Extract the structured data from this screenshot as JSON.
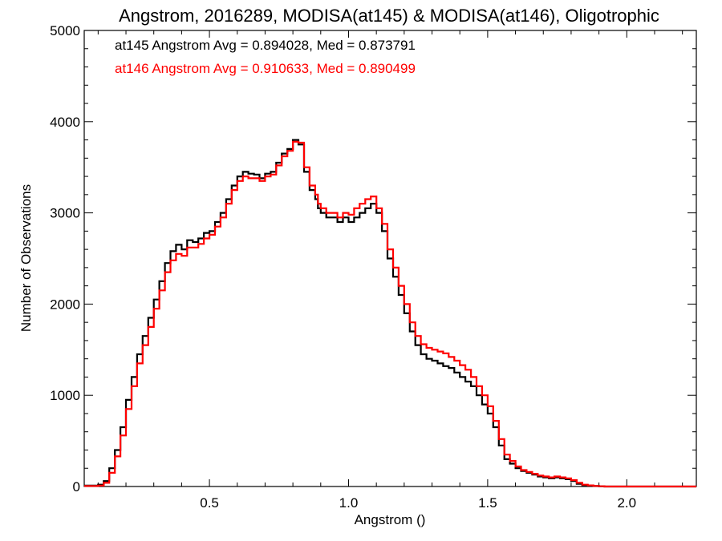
{
  "chart_data": {
    "type": "line",
    "step": true,
    "title": "Angstrom, 2016289, MODISA(at145) & MODISA(at146), Oligotrophic",
    "xlabel": "Angstrom ()",
    "ylabel": "Number of Observations",
    "xlim": [
      0.05,
      2.25
    ],
    "ylim": [
      0,
      5000
    ],
    "xticks": [
      0.5,
      1.0,
      1.5,
      2.0
    ],
    "xtick_labels": [
      "0.5",
      "1.0",
      "1.5",
      "2.0"
    ],
    "yticks": [
      0,
      1000,
      2000,
      3000,
      4000,
      5000
    ],
    "ytick_labels": [
      "0",
      "1000",
      "2000",
      "3000",
      "4000",
      "5000"
    ],
    "grid": false,
    "legend_placement": "top-left",
    "series": [
      {
        "color": "#000000",
        "legend": "at145 Angstrom Avg = 0.894028, Med = 0.873791",
        "x": [
          0.05,
          0.1,
          0.12,
          0.14,
          0.16,
          0.18,
          0.2,
          0.22,
          0.24,
          0.26,
          0.28,
          0.3,
          0.32,
          0.34,
          0.36,
          0.38,
          0.4,
          0.42,
          0.44,
          0.46,
          0.48,
          0.5,
          0.52,
          0.54,
          0.56,
          0.58,
          0.6,
          0.62,
          0.64,
          0.66,
          0.68,
          0.7,
          0.72,
          0.74,
          0.76,
          0.78,
          0.8,
          0.82,
          0.84,
          0.86,
          0.88,
          0.89,
          0.9,
          0.92,
          0.94,
          0.96,
          0.98,
          1.0,
          1.02,
          1.04,
          1.06,
          1.08,
          1.1,
          1.12,
          1.14,
          1.16,
          1.18,
          1.2,
          1.22,
          1.24,
          1.26,
          1.28,
          1.3,
          1.32,
          1.34,
          1.36,
          1.38,
          1.4,
          1.42,
          1.44,
          1.46,
          1.48,
          1.5,
          1.52,
          1.54,
          1.56,
          1.58,
          1.6,
          1.62,
          1.64,
          1.66,
          1.68,
          1.7,
          1.72,
          1.74,
          1.76,
          1.78,
          1.8,
          1.82,
          1.84,
          1.86,
          1.88,
          1.9,
          1.92,
          1.94,
          1.96,
          1.98,
          2.0,
          2.02,
          2.04,
          2.06,
          2.1,
          2.15,
          2.25
        ],
        "y": [
          10,
          20,
          60,
          200,
          400,
          650,
          950,
          1200,
          1450,
          1650,
          1850,
          2050,
          2250,
          2450,
          2580,
          2650,
          2600,
          2700,
          2680,
          2720,
          2780,
          2800,
          2900,
          3000,
          3150,
          3300,
          3400,
          3450,
          3430,
          3420,
          3380,
          3430,
          3450,
          3550,
          3650,
          3700,
          3800,
          3750,
          3450,
          3250,
          3150,
          3050,
          3000,
          2950,
          2950,
          2900,
          2950,
          2900,
          2950,
          3000,
          3050,
          3100,
          3000,
          2800,
          2500,
          2300,
          2100,
          1900,
          1700,
          1550,
          1450,
          1400,
          1380,
          1350,
          1320,
          1300,
          1250,
          1200,
          1150,
          1100,
          1000,
          900,
          800,
          650,
          450,
          300,
          250,
          200,
          170,
          150,
          130,
          110,
          100,
          90,
          100,
          90,
          80,
          60,
          30,
          15,
          10,
          5,
          2,
          0,
          0,
          0,
          0,
          0,
          0,
          0,
          0,
          0,
          0,
          0
        ]
      },
      {
        "color": "#ff0000",
        "legend": "at146 Angstrom Avg = 0.910633, Med = 0.890499",
        "x": [
          0.05,
          0.1,
          0.12,
          0.14,
          0.16,
          0.18,
          0.2,
          0.22,
          0.24,
          0.26,
          0.28,
          0.3,
          0.32,
          0.34,
          0.36,
          0.38,
          0.4,
          0.42,
          0.44,
          0.46,
          0.48,
          0.5,
          0.52,
          0.54,
          0.56,
          0.58,
          0.6,
          0.62,
          0.64,
          0.66,
          0.68,
          0.7,
          0.72,
          0.74,
          0.76,
          0.78,
          0.8,
          0.82,
          0.84,
          0.86,
          0.88,
          0.89,
          0.9,
          0.92,
          0.94,
          0.96,
          0.98,
          1.0,
          1.02,
          1.04,
          1.06,
          1.08,
          1.1,
          1.12,
          1.14,
          1.16,
          1.18,
          1.2,
          1.22,
          1.24,
          1.26,
          1.28,
          1.3,
          1.32,
          1.34,
          1.36,
          1.38,
          1.4,
          1.42,
          1.44,
          1.46,
          1.48,
          1.5,
          1.52,
          1.54,
          1.56,
          1.58,
          1.6,
          1.62,
          1.64,
          1.66,
          1.68,
          1.7,
          1.72,
          1.74,
          1.76,
          1.78,
          1.8,
          1.82,
          1.84,
          1.86,
          1.88,
          1.9,
          1.92,
          1.94,
          1.96,
          1.98,
          2.0,
          2.02,
          2.04,
          2.06,
          2.1,
          2.15,
          2.25
        ],
        "y": [
          5,
          10,
          40,
          150,
          330,
          560,
          850,
          1100,
          1350,
          1550,
          1750,
          1950,
          2150,
          2350,
          2480,
          2550,
          2530,
          2620,
          2620,
          2660,
          2720,
          2760,
          2850,
          2950,
          3100,
          3250,
          3350,
          3400,
          3380,
          3380,
          3350,
          3400,
          3420,
          3520,
          3620,
          3680,
          3780,
          3770,
          3500,
          3300,
          3200,
          3100,
          3050,
          3000,
          3000,
          2950,
          3000,
          2980,
          3050,
          3100,
          3150,
          3180,
          3050,
          2880,
          2600,
          2400,
          2200,
          2000,
          1800,
          1650,
          1560,
          1520,
          1500,
          1480,
          1460,
          1420,
          1380,
          1330,
          1280,
          1200,
          1100,
          1000,
          880,
          720,
          520,
          350,
          280,
          220,
          180,
          160,
          140,
          120,
          110,
          100,
          110,
          100,
          90,
          70,
          40,
          20,
          12,
          6,
          3,
          0,
          0,
          0,
          0,
          0,
          0,
          0,
          0,
          0,
          0,
          0
        ]
      }
    ]
  }
}
